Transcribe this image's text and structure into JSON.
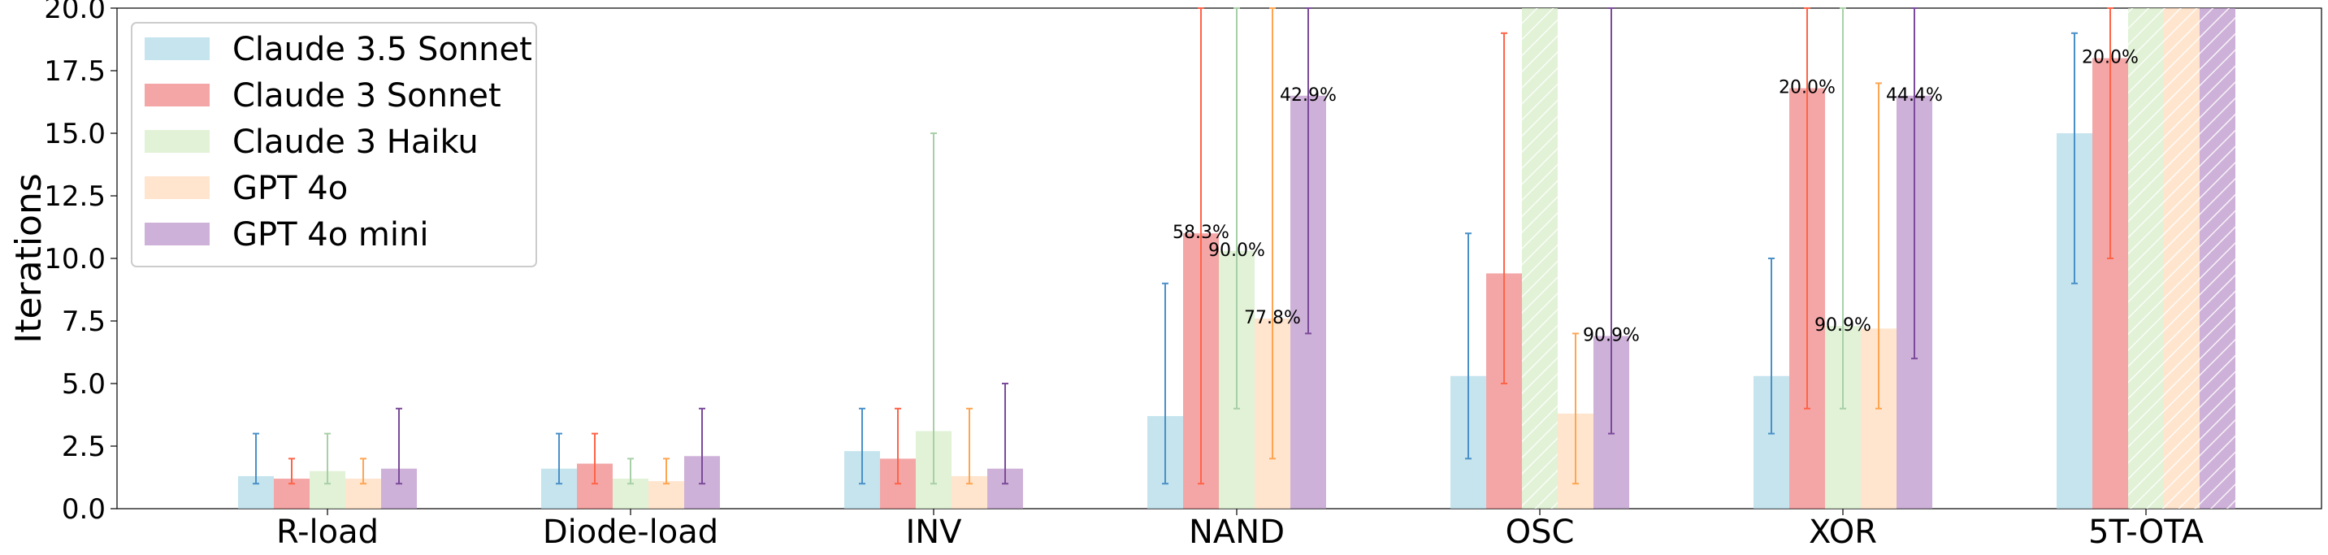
{
  "chart_data": {
    "type": "bar",
    "ylabel": "Iterations",
    "xlabel": "",
    "ylim": [
      0,
      20
    ],
    "yticks": [
      "0.0",
      "2.5",
      "5.0",
      "7.5",
      "10.0",
      "12.5",
      "15.0",
      "17.5",
      "20.0"
    ],
    "categories": [
      "R-load",
      "Diode-load",
      "INV",
      "NAND",
      "OSC",
      "XOR",
      "5T-OTA"
    ],
    "legend_position": "top-left",
    "grid": false,
    "series": [
      {
        "name": "Claude 3.5 Sonnet",
        "color": "#add8e6",
        "values": [
          1.3,
          1.6,
          2.3,
          3.7,
          5.3,
          5.3,
          15.0
        ],
        "err_low": [
          1,
          1,
          1,
          1,
          2,
          3,
          9
        ],
        "err_high": [
          3,
          3,
          4,
          9,
          11,
          10,
          19
        ],
        "hatched": [
          false,
          false,
          false,
          false,
          false,
          false,
          false
        ],
        "labels": [
          "",
          "",
          "",
          "",
          "",
          "",
          ""
        ]
      },
      {
        "name": "Claude 3 Sonnet",
        "color": "#f08080",
        "values": [
          1.2,
          1.8,
          2.0,
          11.0,
          9.4,
          16.8,
          18.0
        ],
        "err_low": [
          1,
          1,
          1,
          1,
          5,
          4,
          10
        ],
        "err_high": [
          2,
          3,
          4,
          20,
          19,
          20,
          20
        ],
        "hatched": [
          false,
          false,
          false,
          false,
          false,
          false,
          false
        ],
        "labels": [
          "",
          "",
          "",
          "58.3%",
          "",
          "20.0%",
          "20.0%"
        ]
      },
      {
        "name": "Claude 3 Haiku",
        "color": "#d4edc4",
        "values": [
          1.5,
          1.2,
          3.1,
          10.3,
          20.0,
          7.3,
          20.0
        ],
        "err_low": [
          1,
          1,
          1,
          4,
          null,
          4,
          null
        ],
        "err_high": [
          3,
          2,
          15,
          20,
          null,
          20,
          null
        ],
        "hatched": [
          false,
          false,
          false,
          false,
          true,
          false,
          true
        ],
        "labels": [
          "",
          "",
          "",
          "90.0%",
          "",
          "90.9%",
          ""
        ]
      },
      {
        "name": "GPT 4o",
        "color": "#ffdab9",
        "values": [
          1.2,
          1.1,
          1.3,
          7.6,
          3.8,
          7.2,
          20.0
        ],
        "err_low": [
          1,
          1,
          1,
          2,
          1,
          4,
          null
        ],
        "err_high": [
          2,
          2,
          4,
          20,
          7,
          17,
          null
        ],
        "hatched": [
          false,
          false,
          false,
          false,
          false,
          false,
          true
        ],
        "labels": [
          "",
          "",
          "",
          "77.8%",
          "",
          "",
          ""
        ]
      },
      {
        "name": "GPT 4o mini",
        "color": "#b990c8",
        "values": [
          1.6,
          2.1,
          1.6,
          16.5,
          6.9,
          16.5,
          20.0
        ],
        "err_low": [
          1,
          1,
          1,
          7,
          3,
          6,
          null
        ],
        "err_high": [
          4,
          4,
          5,
          20,
          20,
          20,
          null
        ],
        "hatched": [
          false,
          false,
          false,
          false,
          false,
          false,
          true
        ],
        "labels": [
          "",
          "",
          "",
          "42.9%",
          "90.9%",
          "44.4%",
          ""
        ]
      }
    ],
    "error_colors": [
      "#4a90c8",
      "#ff6347",
      "#a8d0a8",
      "#ffa552",
      "#7b4a9a"
    ]
  }
}
